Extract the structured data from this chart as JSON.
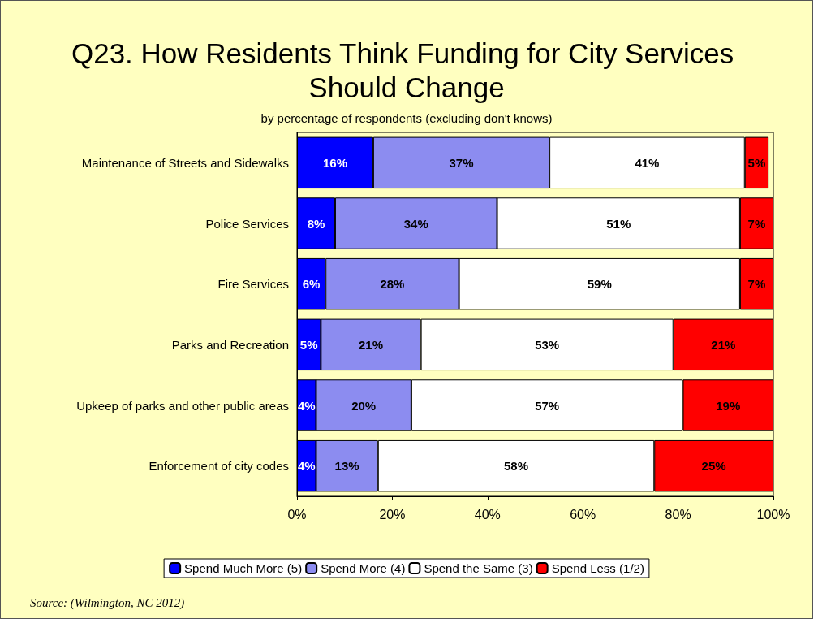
{
  "chart_data": {
    "type": "bar",
    "orientation": "horizontal",
    "stacked": true,
    "title": "Q23. How Residents Think Funding for City Services Should Change",
    "subtitle": "by percentage of respondents (excluding don't knows)",
    "categories": [
      "Maintenance of Streets and Sidewalks",
      "Police Services",
      "Fire Services",
      "Parks and Recreation",
      "Upkeep of parks and other public areas",
      "Enforcement of city codes"
    ],
    "series": [
      {
        "name": "Spend Much More (5)",
        "color": "#0000ff",
        "values": [
          16,
          8,
          6,
          5,
          4,
          4
        ],
        "value_labels": [
          "16%",
          "8%",
          "6%",
          "5%",
          "4%",
          "4%"
        ]
      },
      {
        "name": "Spend More (4)",
        "color": "#8c8cf0",
        "values": [
          37,
          34,
          28,
          21,
          20,
          13
        ],
        "value_labels": [
          "37%",
          "34%",
          "28%",
          "21%",
          "20%",
          "13%"
        ]
      },
      {
        "name": "Spend the Same (3)",
        "color": "#ffffff",
        "values": [
          41,
          51,
          59,
          53,
          57,
          58
        ],
        "value_labels": [
          "41%",
          "51%",
          "59%",
          "53%",
          "57%",
          "58%"
        ]
      },
      {
        "name": "Spend Less (1/2)",
        "color": "#ff0000",
        "values": [
          5,
          7,
          7,
          21,
          19,
          25
        ],
        "value_labels": [
          "5%",
          "7%",
          "7%",
          "21%",
          "19%",
          "25%"
        ]
      }
    ],
    "xlim": [
      0,
      100
    ],
    "xticks": [
      {
        "value": 0,
        "label": "0%"
      },
      {
        "value": 20,
        "label": "20%"
      },
      {
        "value": 40,
        "label": "40%"
      },
      {
        "value": 60,
        "label": "60%"
      },
      {
        "value": 80,
        "label": "80%"
      },
      {
        "value": 100,
        "label": "100%"
      }
    ],
    "legend": "bottom",
    "grid": false,
    "annotations": [
      "Source: (Wilmington, NC 2012)"
    ]
  }
}
